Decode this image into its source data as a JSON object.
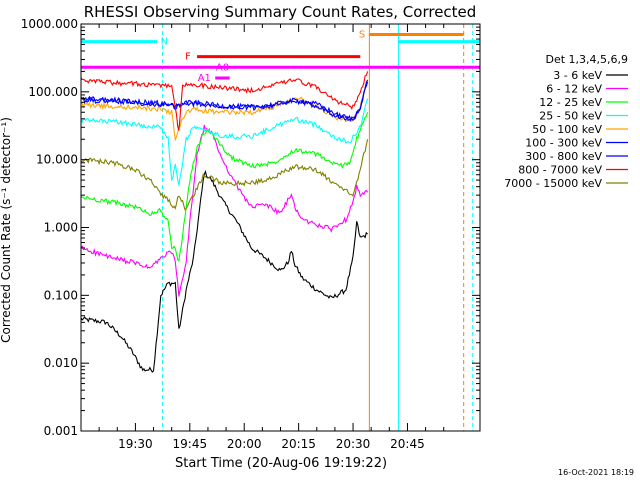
{
  "chart_data": {
    "type": "line",
    "title": "RHESSI Observing Summary Count Rates, Corrected",
    "xlabel": "Start Time (20-Aug-06 19:19:22)",
    "ylabel": "Corrected Count Rate (s⁻¹ detector⁻¹)",
    "yscale": "log",
    "ylim": [
      0.001,
      1000
    ],
    "xlim_min": [
      -5,
      105
    ],
    "y_ticks": [
      "1000.000",
      "100.000",
      "10.000",
      "1.000",
      "0.100",
      "0.010",
      "0.001"
    ],
    "x_ticks": [
      {
        "t": 10,
        "label": "19:30"
      },
      {
        "t": 25,
        "label": "19:45"
      },
      {
        "t": 40,
        "label": "20:00"
      },
      {
        "t": 55,
        "label": "20:15"
      },
      {
        "t": 70,
        "label": "20:30"
      },
      {
        "t": 85,
        "label": "20:45"
      }
    ],
    "legend_header": "Det 1,3,4,5,6,9",
    "legend_position": "right",
    "grid": false,
    "series": [
      {
        "name": "3 - 6 keV",
        "color": "#000000",
        "points": [
          [
            -5,
            0.045
          ],
          [
            2,
            0.04
          ],
          [
            6,
            0.025
          ],
          [
            9,
            0.015
          ],
          [
            12,
            0.008
          ],
          [
            15,
            0.008
          ],
          [
            17,
            0.1
          ],
          [
            19,
            0.15
          ],
          [
            21,
            0.15
          ],
          [
            22,
            0.03
          ],
          [
            24,
            0.12
          ],
          [
            26,
            0.35
          ],
          [
            28,
            2.5
          ],
          [
            29,
            6.5
          ],
          [
            31,
            5
          ],
          [
            34,
            2.5
          ],
          [
            38,
            1.2
          ],
          [
            42,
            0.5
          ],
          [
            46,
            0.35
          ],
          [
            50,
            0.23
          ],
          [
            52,
            0.3
          ],
          [
            53,
            0.45
          ],
          [
            54,
            0.28
          ],
          [
            56,
            0.18
          ],
          [
            60,
            0.12
          ],
          [
            64,
            0.09
          ],
          [
            68,
            0.12
          ],
          [
            70,
            0.35
          ],
          [
            71,
            1.2
          ],
          [
            72,
            0.7
          ],
          [
            74,
            0.8
          ]
        ]
      },
      {
        "name": "6 - 12 keV",
        "color": "#ff00ff",
        "points": [
          [
            -5,
            0.5
          ],
          [
            4,
            0.35
          ],
          [
            10,
            0.3
          ],
          [
            14,
            0.25
          ],
          [
            17,
            0.35
          ],
          [
            20,
            0.45
          ],
          [
            21,
            0.3
          ],
          [
            22,
            0.1
          ],
          [
            24,
            0.3
          ],
          [
            25,
            1.2
          ],
          [
            27,
            12
          ],
          [
            29,
            30
          ],
          [
            31,
            25
          ],
          [
            34,
            10
          ],
          [
            38,
            4
          ],
          [
            42,
            2
          ],
          [
            46,
            2.2
          ],
          [
            50,
            1.6
          ],
          [
            52,
            2.5
          ],
          [
            53,
            3
          ],
          [
            54,
            2
          ],
          [
            56,
            1.3
          ],
          [
            60,
            1.1
          ],
          [
            64,
            0.95
          ],
          [
            68,
            1.3
          ],
          [
            70,
            2.5
          ],
          [
            71,
            4
          ],
          [
            72,
            3
          ],
          [
            74,
            3.3
          ]
        ]
      },
      {
        "name": "12 - 25 keV",
        "color": "#00ff00",
        "points": [
          [
            -5,
            2.8
          ],
          [
            5,
            2.3
          ],
          [
            10,
            2
          ],
          [
            14,
            1.6
          ],
          [
            17,
            1.8
          ],
          [
            19,
            1.2
          ],
          [
            20,
            0.5
          ],
          [
            21,
            0.5
          ],
          [
            22,
            0.3
          ],
          [
            23,
            0.8
          ],
          [
            25,
            5
          ],
          [
            27,
            15
          ],
          [
            29,
            25
          ],
          [
            31,
            25
          ],
          [
            36,
            11
          ],
          [
            42,
            8
          ],
          [
            48,
            9
          ],
          [
            54,
            14
          ],
          [
            60,
            12
          ],
          [
            66,
            8
          ],
          [
            69,
            9
          ],
          [
            71,
            20
          ],
          [
            74,
            50
          ]
        ]
      },
      {
        "name": "25 - 50 keV",
        "color": "#00ffff",
        "points": [
          [
            -5,
            38
          ],
          [
            5,
            36
          ],
          [
            12,
            32
          ],
          [
            17,
            30
          ],
          [
            19,
            20
          ],
          [
            20,
            5
          ],
          [
            21,
            8
          ],
          [
            22,
            4
          ],
          [
            24,
            20
          ],
          [
            26,
            30
          ],
          [
            28,
            28
          ],
          [
            34,
            22
          ],
          [
            42,
            22
          ],
          [
            48,
            30
          ],
          [
            54,
            40
          ],
          [
            60,
            32
          ],
          [
            66,
            20
          ],
          [
            69,
            18
          ],
          [
            72,
            30
          ],
          [
            74,
            80
          ]
        ]
      },
      {
        "name": "50 - 100 keV",
        "color": "#ffa500",
        "points": [
          [
            -5,
            65
          ],
          [
            5,
            60
          ],
          [
            12,
            58
          ],
          [
            17,
            55
          ],
          [
            20,
            50
          ],
          [
            21,
            20
          ],
          [
            22,
            30
          ],
          [
            24,
            50
          ],
          [
            26,
            55
          ],
          [
            28,
            53
          ],
          [
            34,
            50
          ],
          [
            42,
            50
          ],
          [
            48,
            60
          ],
          [
            54,
            85
          ],
          [
            60,
            62
          ],
          [
            66,
            40
          ],
          [
            70,
            38
          ],
          [
            72,
            60
          ],
          [
            74,
            150
          ]
        ]
      },
      {
        "name": "100 - 300 keV",
        "color": "#0000ff",
        "points": [
          [
            -5,
            80
          ],
          [
            5,
            75
          ],
          [
            12,
            70
          ],
          [
            17,
            68
          ],
          [
            20,
            65
          ],
          [
            21,
            60
          ],
          [
            22,
            65
          ],
          [
            24,
            70
          ],
          [
            28,
            68
          ],
          [
            34,
            62
          ],
          [
            42,
            60
          ],
          [
            48,
            65
          ],
          [
            54,
            75
          ],
          [
            60,
            66
          ],
          [
            66,
            45
          ],
          [
            70,
            40
          ],
          [
            72,
            60
          ],
          [
            74,
            150
          ]
        ]
      },
      {
        "name": "300 - 800 keV",
        "color": "#0000ff",
        "points": [
          [
            -5,
            75
          ],
          [
            5,
            72
          ],
          [
            12,
            68
          ],
          [
            17,
            65
          ],
          [
            20,
            62
          ],
          [
            21,
            58
          ],
          [
            22,
            62
          ],
          [
            24,
            68
          ],
          [
            28,
            65
          ],
          [
            34,
            60
          ],
          [
            42,
            58
          ],
          [
            48,
            63
          ],
          [
            54,
            72
          ],
          [
            60,
            63
          ],
          [
            66,
            43
          ],
          [
            70,
            38
          ],
          [
            72,
            58
          ],
          [
            74,
            140
          ]
        ]
      },
      {
        "name": "800 - 7000 keV",
        "color": "#ff0000",
        "points": [
          [
            -5,
            150
          ],
          [
            5,
            135
          ],
          [
            12,
            130
          ],
          [
            17,
            125
          ],
          [
            20,
            120
          ],
          [
            21,
            60
          ],
          [
            22,
            25
          ],
          [
            23,
            120
          ],
          [
            24,
            130
          ],
          [
            28,
            125
          ],
          [
            34,
            115
          ],
          [
            42,
            105
          ],
          [
            48,
            125
          ],
          [
            54,
            150
          ],
          [
            60,
            115
          ],
          [
            66,
            70
          ],
          [
            70,
            60
          ],
          [
            72,
            100
          ],
          [
            74,
            200
          ]
        ]
      },
      {
        "name": "7000 - 15000 keV",
        "color": "#808000",
        "points": [
          [
            -5,
            10
          ],
          [
            4,
            9
          ],
          [
            10,
            7
          ],
          [
            14,
            5
          ],
          [
            17,
            3
          ],
          [
            19,
            2.6
          ],
          [
            20,
            2
          ],
          [
            21,
            2
          ],
          [
            22,
            3
          ],
          [
            24,
            1.8
          ],
          [
            27,
            3.8
          ],
          [
            29,
            6
          ],
          [
            34,
            4.5
          ],
          [
            42,
            4.5
          ],
          [
            48,
            5.5
          ],
          [
            54,
            8
          ],
          [
            60,
            7
          ],
          [
            66,
            4
          ],
          [
            70,
            3
          ],
          [
            72,
            7
          ],
          [
            74,
            20
          ]
        ]
      }
    ],
    "vertical_markers": [
      {
        "t": -5,
        "color": "#00ffff",
        "style": "dashed"
      },
      {
        "t": 17.5,
        "color": "#00ffff",
        "style": "dashed"
      },
      {
        "t": 74.5,
        "color": "#ff8000",
        "style": "solid"
      },
      {
        "t": 82.5,
        "color": "#00ffff",
        "style": "solid"
      },
      {
        "t": 100.5,
        "color": "#ff8000",
        "style": "dashed"
      },
      {
        "t": 103,
        "color": "#00ffff",
        "style": "dashed"
      }
    ],
    "flag_bars": [
      {
        "label": "N",
        "color": "#00ffff",
        "y": 550,
        "segments": [
          [
            -5,
            16
          ],
          [
            82.5,
            105
          ]
        ],
        "label_t": 18
      },
      {
        "label": "S",
        "color": "#ff8000",
        "y": 700,
        "segments": [
          [
            74.5,
            100.5
          ]
        ],
        "label_t": 72.5
      },
      {
        "label": "F",
        "color": "#ff0000",
        "y": 330,
        "segments": [
          [
            27,
            72
          ]
        ],
        "label_t": 24.5
      },
      {
        "label": "A0",
        "color": "#ff00ff",
        "y": 230,
        "segments": [
          [
            -5,
            105
          ]
        ],
        "label_t": 34
      },
      {
        "label": "A1",
        "color": "#ff00ff",
        "y": 160,
        "segments": [
          [
            32,
            36
          ]
        ],
        "label_t": 29
      }
    ]
  },
  "footer_timestamp": "16-Oct-2021 18:19"
}
